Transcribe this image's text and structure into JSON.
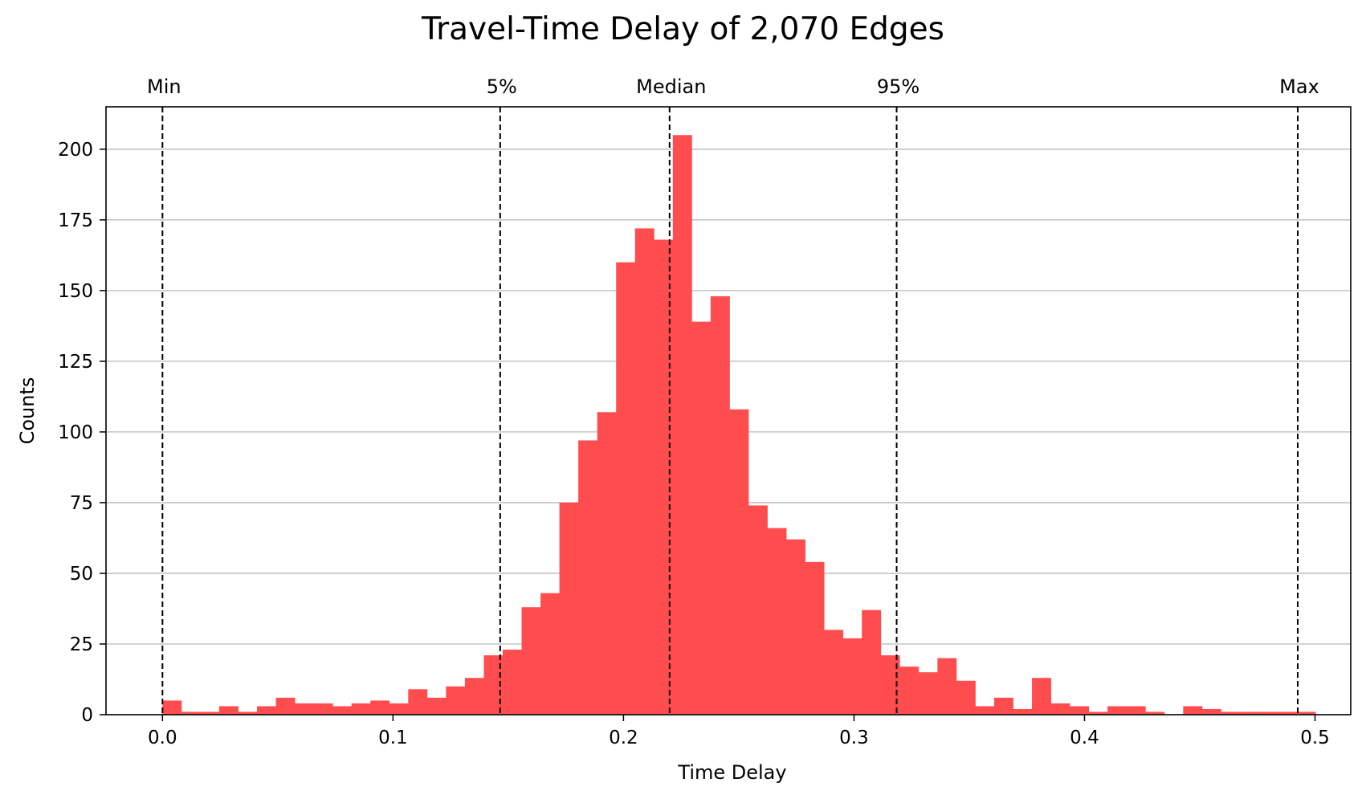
{
  "chart_data": {
    "type": "bar",
    "title": "Travel-Time Delay of 2,070 Edges",
    "xlabel": "Time Delay",
    "ylabel": "Counts",
    "xlim": [
      -0.0245,
      0.5155
    ],
    "ylim": [
      0,
      215
    ],
    "x_ticks": [
      0.0,
      0.1,
      0.2,
      0.3,
      0.4,
      0.5
    ],
    "x_tick_labels": [
      "0.0",
      "0.1",
      "0.2",
      "0.3",
      "0.4",
      "0.5"
    ],
    "y_ticks": [
      0,
      25,
      50,
      75,
      100,
      125,
      150,
      175,
      200
    ],
    "y_tick_labels": [
      "0",
      "25",
      "50",
      "75",
      "100",
      "125",
      "150",
      "175",
      "200"
    ],
    "grid": "y",
    "bar_color": "#ff4d4f",
    "bin_start": 0.0,
    "bin_width": 0.0082,
    "counts": [
      5,
      1,
      1,
      3,
      1,
      3,
      6,
      4,
      4,
      3,
      4,
      5,
      4,
      9,
      6,
      10,
      13,
      21,
      23,
      38,
      43,
      75,
      97,
      107,
      160,
      172,
      168,
      205,
      139,
      148,
      108,
      74,
      66,
      62,
      54,
      30,
      27,
      37,
      21,
      17,
      15,
      20,
      12,
      3,
      6,
      2,
      13,
      4,
      3,
      1,
      3,
      3,
      1,
      0,
      3,
      2,
      1,
      1,
      1,
      1,
      1
    ],
    "reference_lines": [
      {
        "label": "Min",
        "x": 0.0
      },
      {
        "label": "5%",
        "x": 0.1465
      },
      {
        "label": "Median",
        "x": 0.22
      },
      {
        "label": "95%",
        "x": 0.3185
      },
      {
        "label": "Max",
        "x": 0.4925
      }
    ]
  }
}
